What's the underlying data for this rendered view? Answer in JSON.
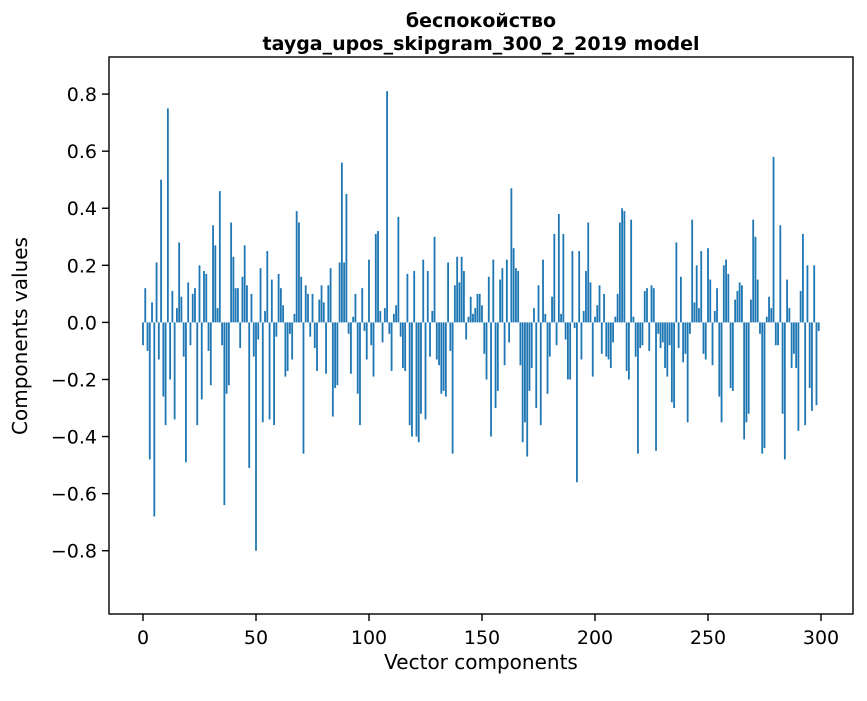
{
  "figure": {
    "title_line1": "беспокойство",
    "title_line2": "tayga_upos_skipgram_300_2_2019 model",
    "xlabel": "Vector components",
    "ylabel": "Components values"
  },
  "chart_data": {
    "type": "bar",
    "title": "беспокойство",
    "subtitle": "tayga_upos_skipgram_300_2_2019 model",
    "xlabel": "Vector components",
    "ylabel": "Components values",
    "bar_color": "#1f77b4",
    "background_color": "#ffffff",
    "spine_color": "#000000",
    "grid": false,
    "legend": false,
    "n_bars": 300,
    "x_is_index": true,
    "xlim": [
      -15,
      314
    ],
    "ylim": [
      -1.03,
      0.93
    ],
    "x_ticks": [
      0,
      50,
      100,
      150,
      200,
      250,
      300
    ],
    "y_ticks": [
      0.8,
      0.6,
      0.4,
      0.2,
      0.0,
      -0.2,
      -0.4,
      -0.6,
      -0.8
    ],
    "y_tick_labels": [
      "0.8",
      "0.6",
      "0.4",
      "0.2",
      "0.0",
      "−0.2",
      "−0.4",
      "−0.6",
      "−0.8"
    ],
    "values": [
      -0.08,
      0.12,
      -0.1,
      -0.48,
      0.07,
      -0.68,
      0.21,
      -0.13,
      0.5,
      -0.26,
      -0.36,
      0.75,
      -0.2,
      0.11,
      -0.34,
      0.05,
      0.28,
      0.09,
      -0.12,
      -0.49,
      0.14,
      -0.08,
      0.1,
      0.12,
      -0.36,
      0.2,
      -0.27,
      0.18,
      0.17,
      -0.1,
      -0.22,
      0.34,
      0.27,
      0.05,
      0.46,
      -0.08,
      -0.64,
      -0.25,
      -0.22,
      0.35,
      0.23,
      0.12,
      0.12,
      -0.09,
      0.16,
      0.27,
      0.13,
      -0.51,
      0.1,
      -0.12,
      -0.8,
      -0.06,
      0.19,
      -0.35,
      0.04,
      0.25,
      -0.34,
      0.15,
      -0.36,
      -0.05,
      0.17,
      0.12,
      0.06,
      -0.19,
      -0.17,
      -0.04,
      -0.13,
      0.03,
      0.39,
      0.35,
      0.16,
      -0.46,
      0.13,
      0.1,
      -0.05,
      0.1,
      -0.09,
      -0.17,
      0.08,
      0.13,
      0.07,
      -0.18,
      0.13,
      0.19,
      -0.33,
      -0.23,
      -0.22,
      0.21,
      0.56,
      0.21,
      0.45,
      -0.04,
      -0.18,
      0.02,
      0.1,
      -0.25,
      -0.36,
      0.12,
      -0.03,
      -0.13,
      0.22,
      -0.08,
      -0.19,
      0.31,
      0.32,
      0.04,
      -0.07,
      0.05,
      0.81,
      -0.04,
      -0.17,
      0.03,
      0.06,
      0.37,
      -0.05,
      -0.16,
      -0.17,
      0.17,
      -0.36,
      -0.4,
      0.18,
      -0.4,
      -0.42,
      -0.32,
      0.22,
      -0.34,
      0.18,
      -0.12,
      0.04,
      0.3,
      -0.13,
      -0.15,
      -0.25,
      -0.24,
      -0.26,
      0.21,
      -0.1,
      -0.46,
      0.13,
      0.23,
      0.14,
      0.23,
      0.18,
      -0.06,
      0.02,
      0.09,
      0.03,
      0.05,
      0.1,
      0.1,
      0.06,
      -0.11,
      -0.2,
      0.16,
      -0.4,
      0.22,
      -0.3,
      -0.24,
      0.15,
      0.19,
      -0.15,
      0.22,
      -0.07,
      0.47,
      0.26,
      0.19,
      0.18,
      -0.15,
      -0.42,
      -0.35,
      -0.47,
      -0.24,
      -0.16,
      0.05,
      -0.3,
      0.13,
      -0.36,
      0.22,
      0.03,
      -0.25,
      -0.12,
      0.09,
      0.31,
      -0.08,
      0.38,
      0.03,
      0.31,
      -0.06,
      -0.2,
      -0.2,
      0.25,
      -0.02,
      -0.56,
      0.25,
      -0.13,
      0.04,
      0.18,
      0.35,
      0.14,
      -0.19,
      0.02,
      0.06,
      0.13,
      -0.11,
      0.1,
      -0.12,
      -0.13,
      -0.16,
      -0.07,
      0.02,
      0.1,
      0.35,
      0.4,
      0.39,
      -0.17,
      -0.2,
      0.36,
      0.02,
      -0.12,
      -0.46,
      -0.09,
      -0.08,
      0.11,
      0.12,
      -0.1,
      0.13,
      0.12,
      -0.45,
      -0.04,
      -0.09,
      -0.07,
      -0.16,
      -0.19,
      -0.08,
      -0.28,
      -0.3,
      0.28,
      -0.09,
      0.16,
      -0.14,
      -0.11,
      -0.35,
      -0.04,
      0.36,
      0.07,
      0.2,
      0.05,
      0.25,
      -0.11,
      -0.13,
      0.26,
      0.15,
      -0.15,
      0.04,
      0.12,
      -0.26,
      -0.35,
      0.2,
      0.22,
      0.17,
      -0.23,
      -0.24,
      0.08,
      0.11,
      0.14,
      0.13,
      -0.41,
      -0.35,
      -0.32,
      0.08,
      0.36,
      0.3,
      0.15,
      -0.04,
      -0.46,
      -0.44,
      0.02,
      0.09,
      0.05,
      0.58,
      -0.08,
      -0.08,
      0.34,
      -0.32,
      -0.48,
      0.15,
      0.05,
      -0.16,
      -0.11,
      -0.16,
      -0.38,
      0.11,
      0.31,
      -0.36,
      0.2,
      -0.23,
      -0.31,
      0.2,
      -0.29,
      -0.03
    ]
  }
}
